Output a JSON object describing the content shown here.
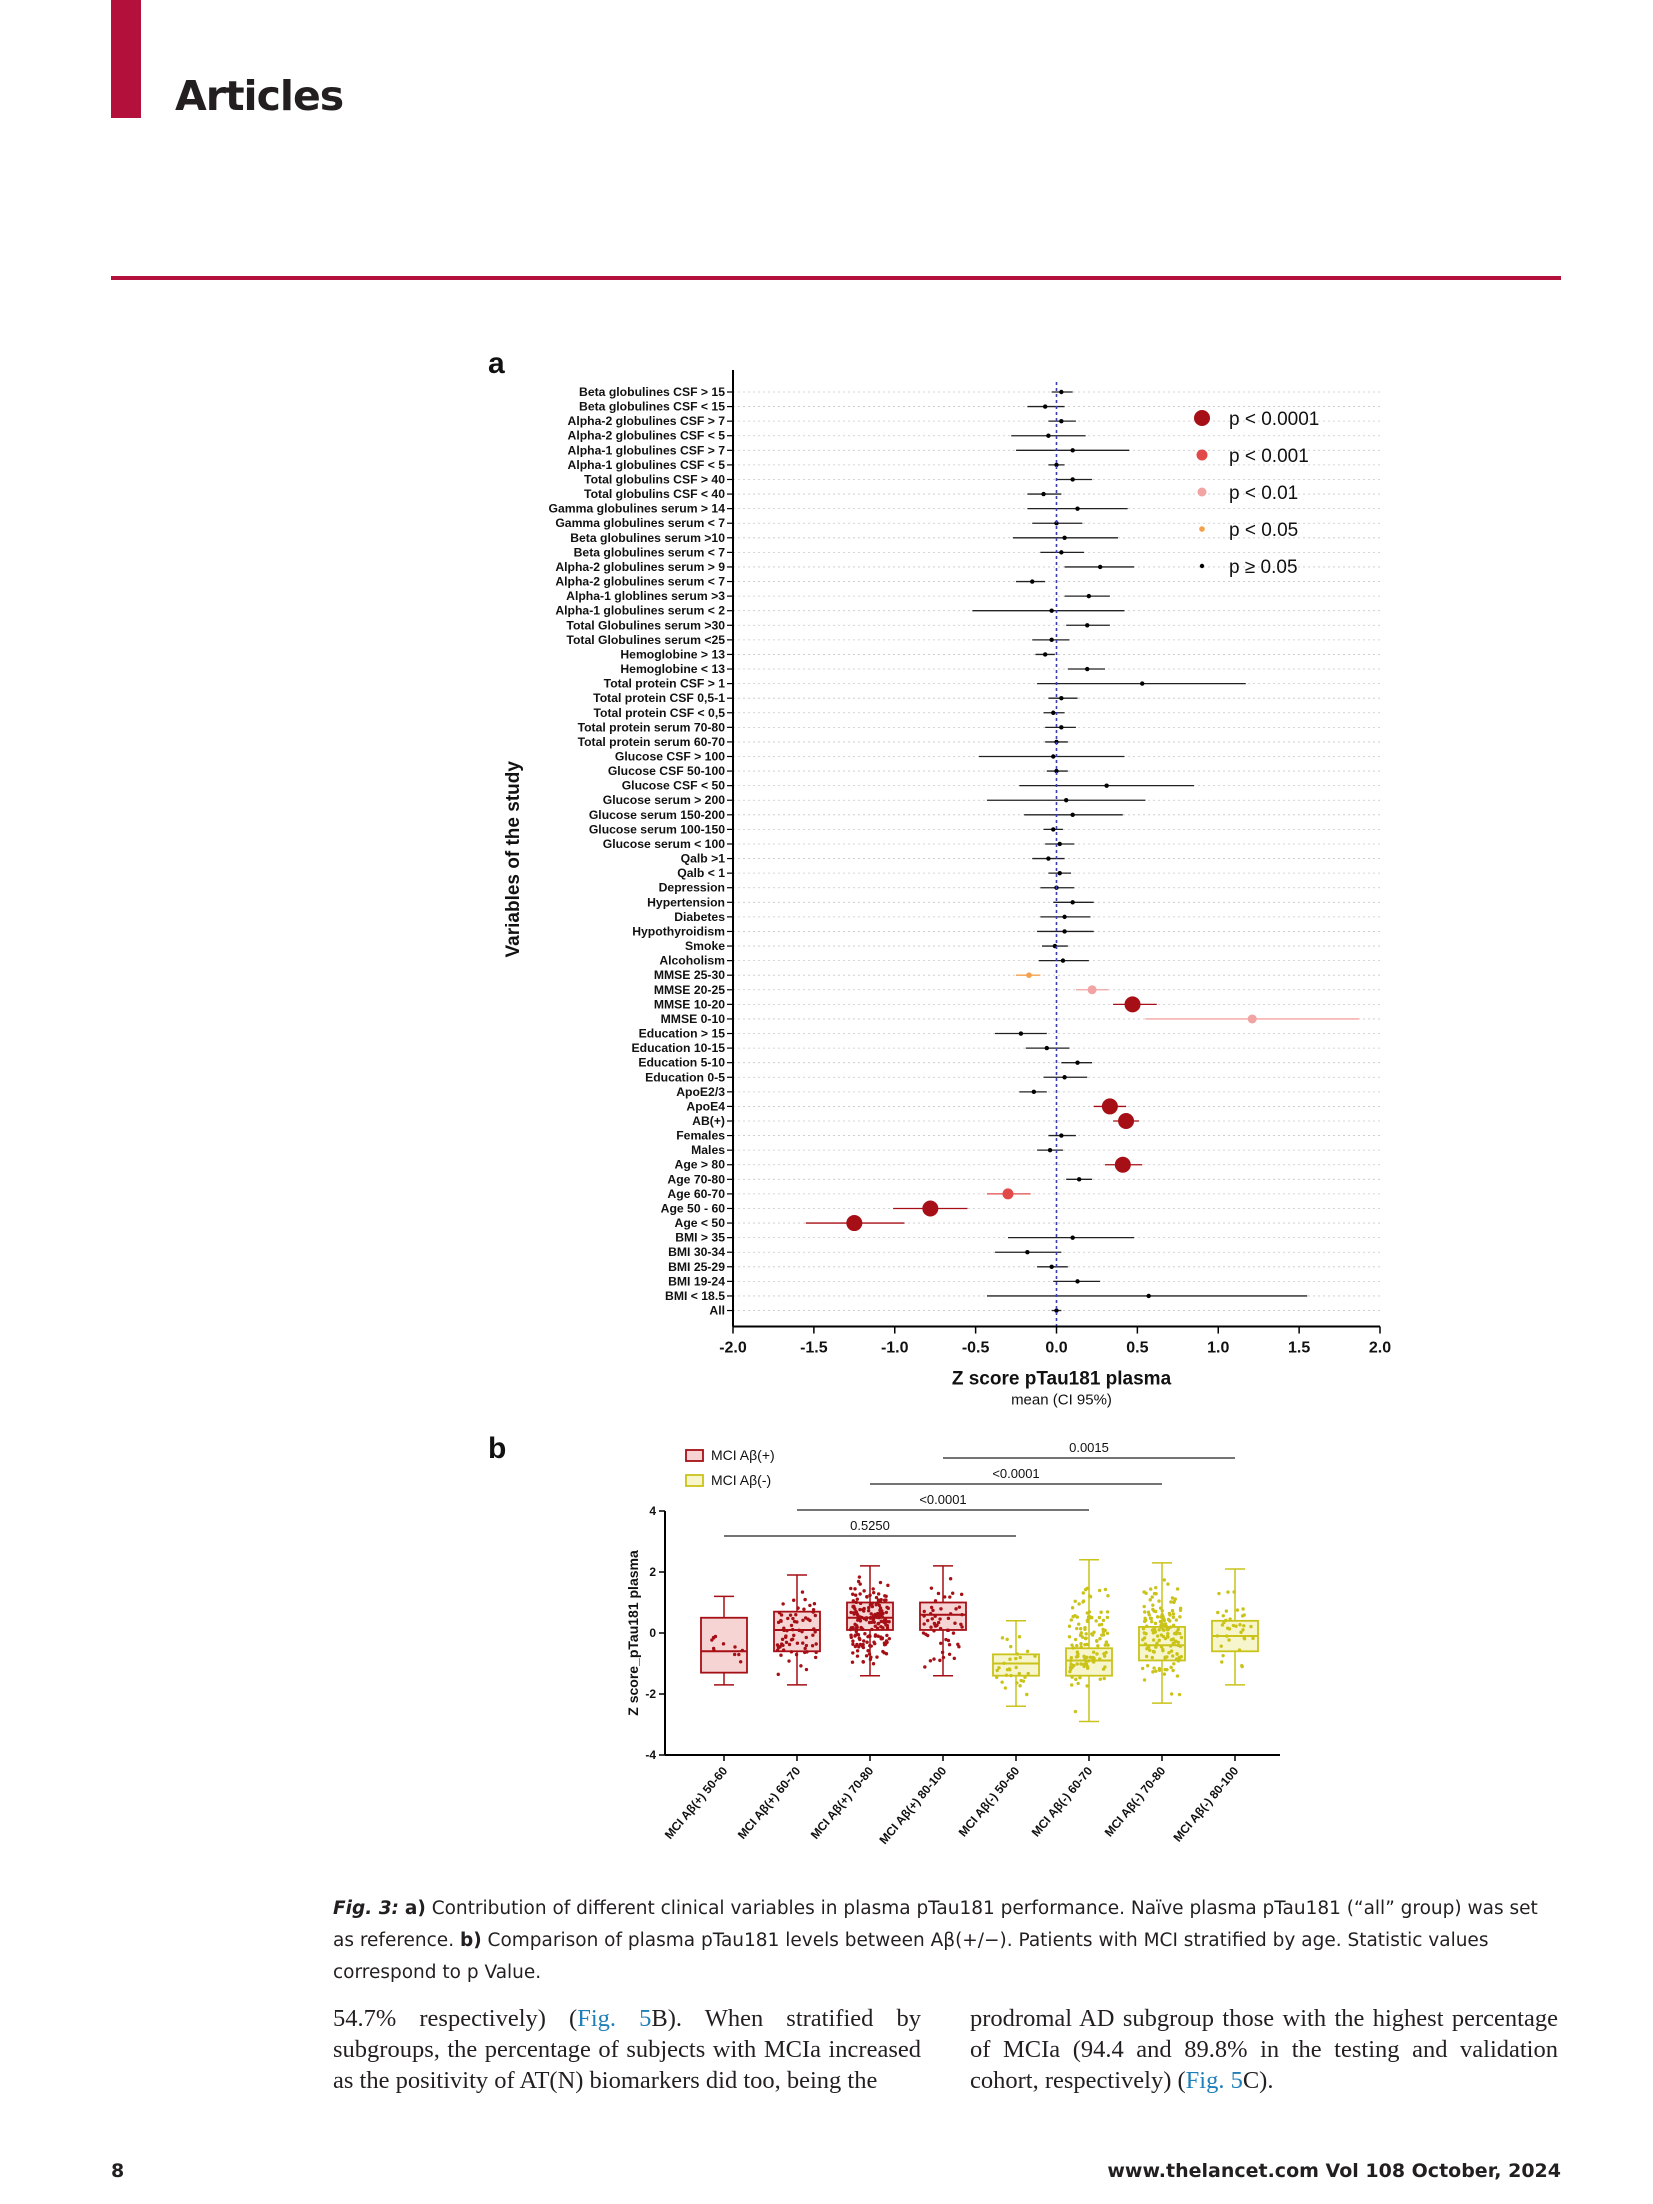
{
  "header": {
    "section": "Articles"
  },
  "figure": {
    "panel_a_letter": "a",
    "panel_b_letter": "b",
    "caption_fig": "Fig. 3:",
    "caption_a_letter": "a)",
    "caption_a_text": " Contribution of different clinical variables in plasma pTau181 performance. Naïve plasma pTau181 (“all” group) was set as reference. ",
    "caption_b_letter": "b)",
    "caption_b_text": " Comparison of plasma pTau181 levels between Aβ(+/−). Patients with MCI stratified by age. Statistic values correspond to p Value."
  },
  "body": {
    "left_pre": "54.7% respectively) (",
    "left_link": "Fig. 5",
    "left_post": "B). When stratified by subgroups, the percentage of subjects with MCIa increased as the positivity of AT(N) biomarkers did too, being the",
    "right_pre": "prodromal AD subgroup those with the highest percentage of MCIa (94.4 and 89.8% in the testing and validation cohort, respectively) (",
    "right_link": "Fig. 5",
    "right_post": "C)."
  },
  "footer": {
    "page": "8",
    "journal": "www.thelancet.com Vol 108 October, 2024"
  },
  "chart_data": [
    {
      "type": "forest",
      "ylabel": "Variables of the study",
      "xlabel": "Z score pTau181 plasma",
      "xlabel_sub": "mean (CI 95%)",
      "xlim": [
        -2.0,
        2.0
      ],
      "xticks": [
        "-2.0",
        "-1.5",
        "-1.0",
        "-0.5",
        "0.0",
        "0.5",
        "1.0",
        "1.5",
        "2.0"
      ],
      "reference_line": 0,
      "legend": [
        {
          "label": "p < 0.0001",
          "color": "#a50f15",
          "size": "xl"
        },
        {
          "label": "p < 0.001",
          "color": "#e24a4a",
          "size": "l"
        },
        {
          "label": "p < 0.01",
          "color": "#f2a3a3",
          "size": "m"
        },
        {
          "label": "p < 0.05",
          "color": "#f5a04a",
          "size": "s"
        },
        {
          "label": "p ≥ 0.05",
          "color": "#000000",
          "size": "xs"
        }
      ],
      "rows": [
        {
          "label": "Beta globulines CSF > 15",
          "mean": 0.03,
          "lo": -0.03,
          "hi": 0.1,
          "p": "ns"
        },
        {
          "label": "Beta globulines CSF < 15",
          "mean": -0.07,
          "lo": -0.18,
          "hi": 0.05,
          "p": "ns"
        },
        {
          "label": "Alpha-2 globulines CSF > 7",
          "mean": 0.03,
          "lo": -0.05,
          "hi": 0.12,
          "p": "ns"
        },
        {
          "label": "Alpha-2 globulines CSF < 5",
          "mean": -0.05,
          "lo": -0.28,
          "hi": 0.18,
          "p": "ns"
        },
        {
          "label": "Alpha-1 globulines CSF > 7",
          "mean": 0.1,
          "lo": -0.25,
          "hi": 0.45,
          "p": "ns"
        },
        {
          "label": "Alpha-1 globulines CSF < 5",
          "mean": 0.0,
          "lo": -0.05,
          "hi": 0.05,
          "p": "ns"
        },
        {
          "label": "Total globulins CSF > 40",
          "mean": 0.1,
          "lo": 0.0,
          "hi": 0.22,
          "p": "ns"
        },
        {
          "label": "Total globulins CSF < 40",
          "mean": -0.08,
          "lo": -0.18,
          "hi": 0.03,
          "p": "ns"
        },
        {
          "label": "Gamma globulines serum > 14",
          "mean": 0.13,
          "lo": -0.18,
          "hi": 0.44,
          "p": "ns"
        },
        {
          "label": "Gamma globulines serum < 7",
          "mean": 0.0,
          "lo": -0.15,
          "hi": 0.16,
          "p": "ns"
        },
        {
          "label": "Beta globulines serum >10",
          "mean": 0.05,
          "lo": -0.27,
          "hi": 0.38,
          "p": "ns"
        },
        {
          "label": "Beta globulines serum < 7",
          "mean": 0.03,
          "lo": -0.1,
          "hi": 0.17,
          "p": "ns"
        },
        {
          "label": "Alpha-2 globulines serum > 9",
          "mean": 0.27,
          "lo": 0.05,
          "hi": 0.48,
          "p": "ns"
        },
        {
          "label": "Alpha-2 globulines serum < 7",
          "mean": -0.15,
          "lo": -0.25,
          "hi": -0.07,
          "p": "ns"
        },
        {
          "label": "Alpha-1 globlines serum >3",
          "mean": 0.2,
          "lo": 0.05,
          "hi": 0.33,
          "p": "ns"
        },
        {
          "label": "Alpha-1 globulines serum < 2",
          "mean": -0.03,
          "lo": -0.52,
          "hi": 0.42,
          "p": "ns"
        },
        {
          "label": "Total Globulines serum >30",
          "mean": 0.19,
          "lo": 0.06,
          "hi": 0.33,
          "p": "ns"
        },
        {
          "label": "Total Globulines serum <25",
          "mean": -0.03,
          "lo": -0.15,
          "hi": 0.08,
          "p": "ns"
        },
        {
          "label": "Hemoglobine > 13",
          "mean": -0.07,
          "lo": -0.13,
          "hi": -0.01,
          "p": "ns"
        },
        {
          "label": "Hemoglobine < 13",
          "mean": 0.19,
          "lo": 0.07,
          "hi": 0.3,
          "p": "ns"
        },
        {
          "label": "Total protein CSF > 1",
          "mean": 0.53,
          "lo": -0.12,
          "hi": 1.17,
          "p": "ns"
        },
        {
          "label": "Total protein CSF 0,5-1",
          "mean": 0.03,
          "lo": -0.05,
          "hi": 0.13,
          "p": "ns"
        },
        {
          "label": "Total protein CSF < 0,5",
          "mean": -0.02,
          "lo": -0.08,
          "hi": 0.05,
          "p": "ns"
        },
        {
          "label": "Total protein serum 70-80",
          "mean": 0.03,
          "lo": -0.07,
          "hi": 0.12,
          "p": "ns"
        },
        {
          "label": "Total protein serum 60-70",
          "mean": 0.0,
          "lo": -0.07,
          "hi": 0.07,
          "p": "ns"
        },
        {
          "label": "Glucose CSF > 100",
          "mean": -0.02,
          "lo": -0.48,
          "hi": 0.42,
          "p": "ns"
        },
        {
          "label": "Glucose CSF 50-100",
          "mean": 0.0,
          "lo": -0.06,
          "hi": 0.07,
          "p": "ns"
        },
        {
          "label": "Glucose CSF < 50",
          "mean": 0.31,
          "lo": -0.23,
          "hi": 0.85,
          "p": "ns"
        },
        {
          "label": "Glucose serum > 200",
          "mean": 0.06,
          "lo": -0.43,
          "hi": 0.55,
          "p": "ns"
        },
        {
          "label": "Glucose serum 150-200",
          "mean": 0.1,
          "lo": -0.2,
          "hi": 0.41,
          "p": "ns"
        },
        {
          "label": "Glucose serum 100-150",
          "mean": -0.02,
          "lo": -0.08,
          "hi": 0.04,
          "p": "ns"
        },
        {
          "label": "Glucose serum < 100",
          "mean": 0.02,
          "lo": -0.07,
          "hi": 0.11,
          "p": "ns"
        },
        {
          "label": "Qalb >1",
          "mean": -0.05,
          "lo": -0.15,
          "hi": 0.05,
          "p": "ns"
        },
        {
          "label": "Qalb < 1",
          "mean": 0.02,
          "lo": -0.05,
          "hi": 0.09,
          "p": "ns"
        },
        {
          "label": "Depression",
          "mean": 0.0,
          "lo": -0.1,
          "hi": 0.11,
          "p": "ns"
        },
        {
          "label": "Hypertension",
          "mean": 0.1,
          "lo": -0.02,
          "hi": 0.23,
          "p": "ns"
        },
        {
          "label": "Diabetes",
          "mean": 0.05,
          "lo": -0.1,
          "hi": 0.21,
          "p": "ns"
        },
        {
          "label": "Hypothyroidism",
          "mean": 0.05,
          "lo": -0.12,
          "hi": 0.23,
          "p": "ns"
        },
        {
          "label": "Smoke",
          "mean": -0.01,
          "lo": -0.09,
          "hi": 0.07,
          "p": "ns"
        },
        {
          "label": "Alcoholism",
          "mean": 0.04,
          "lo": -0.11,
          "hi": 0.2,
          "p": "ns"
        },
        {
          "label": "MMSE 25-30",
          "mean": -0.17,
          "lo": -0.25,
          "hi": -0.1,
          "p": "p<0.05"
        },
        {
          "label": "MMSE 20-25",
          "mean": 0.22,
          "lo": 0.12,
          "hi": 0.32,
          "p": "p<0.01"
        },
        {
          "label": "MMSE 10-20",
          "mean": 0.47,
          "lo": 0.35,
          "hi": 0.62,
          "p": "p<0.0001"
        },
        {
          "label": "MMSE 0-10",
          "mean": 1.21,
          "lo": 0.55,
          "hi": 1.87,
          "p": "p<0.01"
        },
        {
          "label": "Education > 15",
          "mean": -0.22,
          "lo": -0.38,
          "hi": -0.06,
          "p": "ns"
        },
        {
          "label": "Education 10-15",
          "mean": -0.06,
          "lo": -0.19,
          "hi": 0.08,
          "p": "ns"
        },
        {
          "label": "Education 5-10",
          "mean": 0.13,
          "lo": 0.03,
          "hi": 0.22,
          "p": "ns"
        },
        {
          "label": "Education 0-5",
          "mean": 0.05,
          "lo": -0.08,
          "hi": 0.19,
          "p": "ns"
        },
        {
          "label": "ApoE2/3",
          "mean": -0.14,
          "lo": -0.23,
          "hi": -0.06,
          "p": "ns"
        },
        {
          "label": "ApoE4",
          "mean": 0.33,
          "lo": 0.23,
          "hi": 0.43,
          "p": "p<0.0001"
        },
        {
          "label": "AB(+)",
          "mean": 0.43,
          "lo": 0.35,
          "hi": 0.51,
          "p": "p<0.0001"
        },
        {
          "label": "Females",
          "mean": 0.03,
          "lo": -0.05,
          "hi": 0.12,
          "p": "ns"
        },
        {
          "label": "Males",
          "mean": -0.04,
          "lo": -0.12,
          "hi": 0.04,
          "p": "ns"
        },
        {
          "label": "Age > 80",
          "mean": 0.41,
          "lo": 0.3,
          "hi": 0.53,
          "p": "p<0.0001"
        },
        {
          "label": "Age 70-80",
          "mean": 0.14,
          "lo": 0.06,
          "hi": 0.22,
          "p": "ns"
        },
        {
          "label": "Age 60-70",
          "mean": -0.3,
          "lo": -0.43,
          "hi": -0.16,
          "p": "p<0.001"
        },
        {
          "label": "Age 50 - 60",
          "mean": -0.78,
          "lo": -1.01,
          "hi": -0.55,
          "p": "p<0.0001"
        },
        {
          "label": "Age < 50",
          "mean": -1.25,
          "lo": -1.55,
          "hi": -0.94,
          "p": "p<0.0001"
        },
        {
          "label": "BMI > 35",
          "mean": 0.1,
          "lo": -0.3,
          "hi": 0.48,
          "p": "ns"
        },
        {
          "label": "BMI 30-34",
          "mean": -0.18,
          "lo": -0.38,
          "hi": 0.03,
          "p": "ns"
        },
        {
          "label": "BMI 25-29",
          "mean": -0.03,
          "lo": -0.12,
          "hi": 0.07,
          "p": "ns"
        },
        {
          "label": "BMI 19-24",
          "mean": 0.13,
          "lo": -0.02,
          "hi": 0.27,
          "p": "ns"
        },
        {
          "label": "BMI < 18.5",
          "mean": 0.57,
          "lo": -0.43,
          "hi": 1.55,
          "p": "ns"
        },
        {
          "label": "All",
          "mean": 0.0,
          "lo": -0.03,
          "hi": 0.03,
          "p": "ns"
        }
      ]
    },
    {
      "type": "box",
      "ylabel": "Z score_pTau181 plasma",
      "ylim": [
        -4,
        4
      ],
      "yticks": [
        "-4",
        "-2",
        "0",
        "2",
        "4"
      ],
      "legend": [
        {
          "label": "MCI Aβ(+)",
          "color": "#a50f15"
        },
        {
          "label": "MCI Aβ(-)",
          "color": "#c9c31a"
        }
      ],
      "groups": [
        {
          "label": "MCI Aβ(+) 50-60",
          "series": "MCI Aβ(+)",
          "min": -1.7,
          "q1": -1.3,
          "median": -0.6,
          "q3": 0.5,
          "max": 1.2,
          "n": 12
        },
        {
          "label": "MCI Aβ(+) 60-70",
          "series": "MCI Aβ(+)",
          "min": -1.7,
          "q1": -0.6,
          "median": 0.1,
          "q3": 0.7,
          "max": 1.9,
          "n": 70
        },
        {
          "label": "MCI Aβ(+) 70-80",
          "series": "MCI Aβ(+)",
          "min": -1.4,
          "q1": 0.1,
          "median": 0.5,
          "q3": 1.0,
          "max": 2.2,
          "n": 180
        },
        {
          "label": "MCI Aβ(+) 80-100",
          "series": "MCI Aβ(+)",
          "min": -1.4,
          "q1": 0.1,
          "median": 0.6,
          "q3": 1.0,
          "max": 2.2,
          "n": 55
        },
        {
          "label": "MCI Aβ(-) 50-60",
          "series": "MCI Aβ(-)",
          "min": -2.4,
          "q1": -1.4,
          "median": -1.0,
          "q3": -0.7,
          "max": 0.4,
          "n": 30
        },
        {
          "label": "MCI Aβ(-) 60-70",
          "series": "MCI Aβ(-)",
          "min": -2.9,
          "q1": -1.4,
          "median": -0.9,
          "q3": -0.5,
          "max": 2.4,
          "n": 120
        },
        {
          "label": "MCI Aβ(-) 70-80",
          "series": "MCI Aβ(-)",
          "min": -2.3,
          "q1": -0.9,
          "median": -0.4,
          "q3": 0.2,
          "max": 2.3,
          "n": 150
        },
        {
          "label": "MCI Aβ(-) 80-100",
          "series": "MCI Aβ(-)",
          "min": -1.7,
          "q1": -0.6,
          "median": -0.1,
          "q3": 0.4,
          "max": 2.1,
          "n": 35
        }
      ],
      "comparisons": [
        {
          "from": 0,
          "to": 4,
          "label": "0.5250"
        },
        {
          "from": 1,
          "to": 5,
          "label": "<0.0001"
        },
        {
          "from": 2,
          "to": 6,
          "label": "<0.0001"
        },
        {
          "from": 3,
          "to": 7,
          "label": "0.0015"
        }
      ]
    }
  ]
}
